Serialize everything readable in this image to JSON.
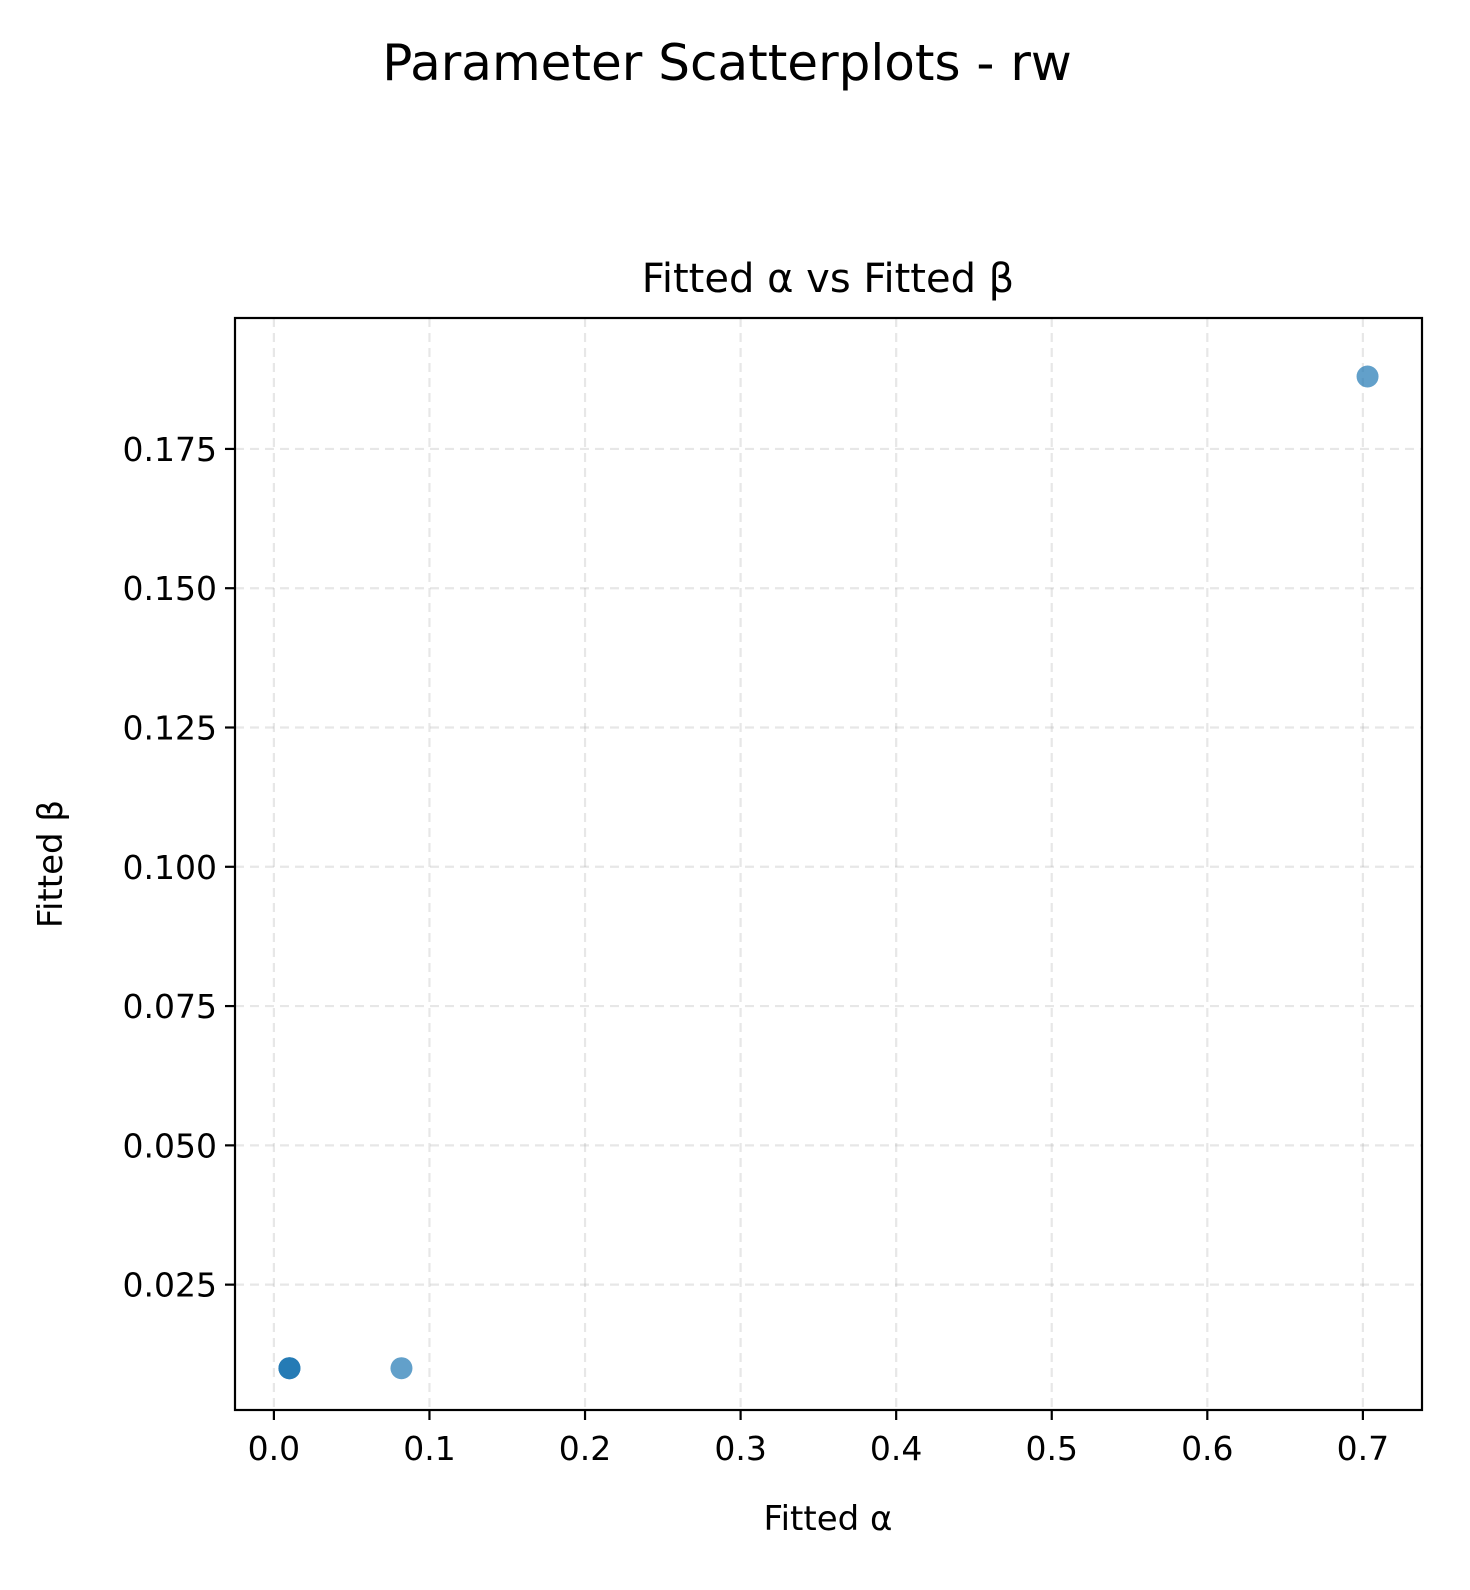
{
  "figure_title": "Parameter Scatterplots - rw",
  "chart_data": {
    "type": "scatter",
    "title": "Fitted α vs Fitted β",
    "xlabel": "Fitted α",
    "ylabel": "Fitted β",
    "xlim": [
      -0.025,
      0.738
    ],
    "ylim": [
      0.0025,
      0.1985
    ],
    "xticks": [
      0.0,
      0.1,
      0.2,
      0.3,
      0.4,
      0.5,
      0.6,
      0.7
    ],
    "xtick_labels": [
      "0.0",
      "0.1",
      "0.2",
      "0.3",
      "0.4",
      "0.5",
      "0.6",
      "0.7"
    ],
    "yticks": [
      0.025,
      0.05,
      0.075,
      0.1,
      0.125,
      0.15,
      0.175
    ],
    "ytick_labels": [
      "0.025",
      "0.050",
      "0.075",
      "0.100",
      "0.125",
      "0.150",
      "0.175"
    ],
    "grid": true,
    "marker_color": "#1f77b4",
    "marker_alpha": 0.7,
    "points": [
      {
        "x": 0.01,
        "y": 0.01
      },
      {
        "x": 0.01,
        "y": 0.01
      },
      {
        "x": 0.01,
        "y": 0.01
      },
      {
        "x": 0.082,
        "y": 0.01
      },
      {
        "x": 0.703,
        "y": 0.188
      }
    ]
  }
}
